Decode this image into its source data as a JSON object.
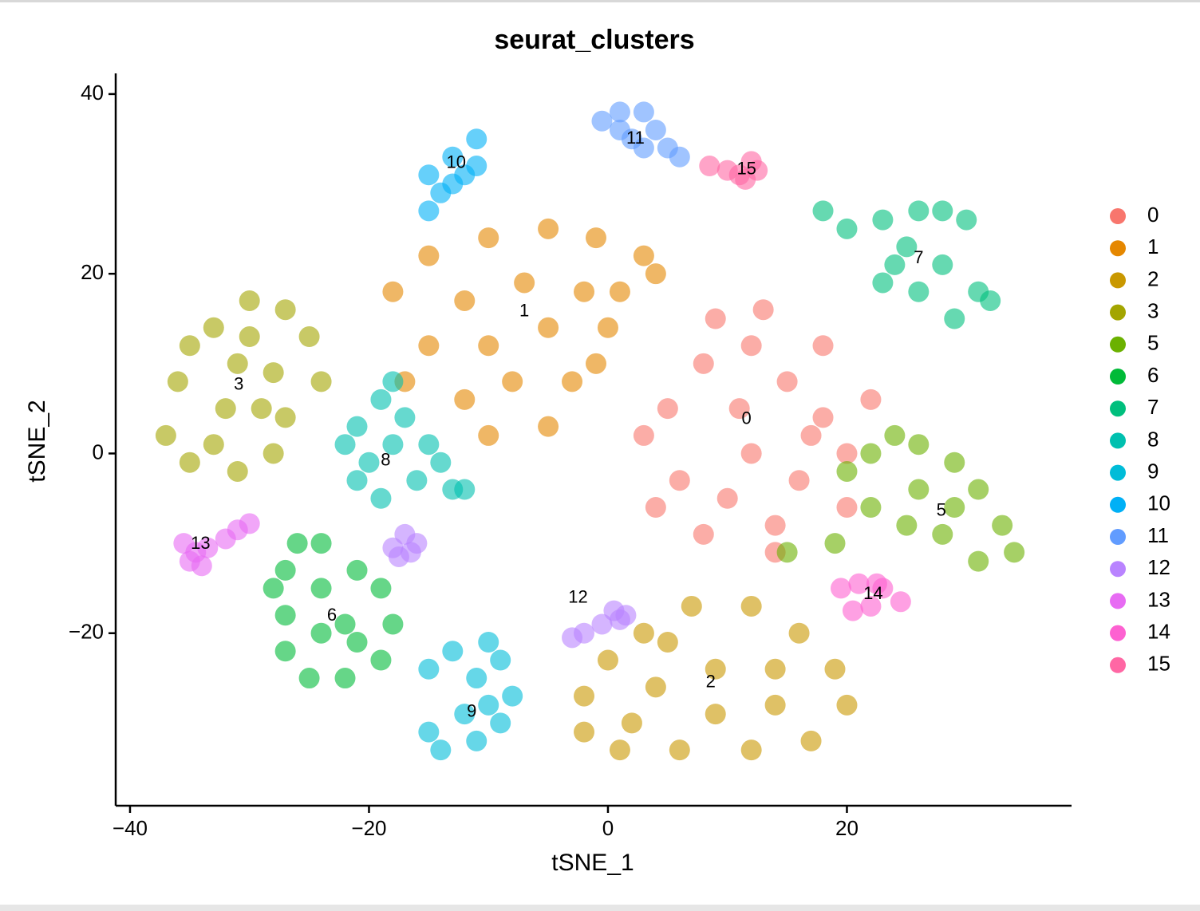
{
  "chart_data": {
    "type": "scatter",
    "title": "seurat_clusters",
    "x_label": "tSNE_1",
    "y_label": "tSNE_2",
    "xlim": [
      -41.2,
      38.8
    ],
    "ylim": [
      -39.2,
      42.3
    ],
    "xticks": [
      {
        "value": -40,
        "label": "−40"
      },
      {
        "value": -20,
        "label": "−20"
      },
      0,
      20
    ],
    "yticks": [
      {
        "value": -20,
        "label": "−20"
      },
      0,
      20,
      40
    ],
    "grid": false,
    "legend": "right",
    "series": [
      {
        "name": "0",
        "color": "#F8766D",
        "label_x": 11.6,
        "label_y": 3.8,
        "x": [
          5,
          8,
          12,
          15,
          18,
          20,
          10,
          14,
          6,
          3,
          12,
          16,
          22,
          9,
          13,
          18,
          8,
          14,
          20,
          4,
          11,
          17
        ],
        "y": [
          5,
          10,
          12,
          8,
          4,
          0,
          -5,
          -8,
          -3,
          2,
          0,
          -3,
          6,
          15,
          16,
          12,
          -9,
          -11,
          -6,
          -6,
          5,
          2
        ]
      },
      {
        "name": "1",
        "color": "#E58700",
        "label_x": -7,
        "label_y": 15.8,
        "x": [
          -18,
          -15,
          -10,
          -5,
          -1,
          3,
          -12,
          -7,
          -2,
          -15,
          -10,
          -5,
          0,
          -17,
          -12,
          -8,
          -3,
          -10,
          -5,
          1,
          4,
          -1
        ],
        "y": [
          18,
          22,
          24,
          25,
          24,
          22,
          17,
          19,
          18,
          12,
          12,
          14,
          14,
          8,
          6,
          8,
          8,
          2,
          3,
          18,
          20,
          10
        ]
      },
      {
        "name": "2",
        "color": "#C99800",
        "label_x": 8.6,
        "label_y": -25.5,
        "x": [
          -2,
          0,
          3,
          7,
          12,
          16,
          19,
          20,
          17,
          12,
          6,
          1,
          -2,
          4,
          9,
          14,
          9,
          14,
          5,
          2
        ],
        "y": [
          -27,
          -23,
          -20,
          -17,
          -17,
          -20,
          -24,
          -28,
          -32,
          -33,
          -33,
          -33,
          -31,
          -26,
          -24,
          -24,
          -29,
          -28,
          -21,
          -30
        ]
      },
      {
        "name": "3",
        "color": "#A3A500",
        "label_x": -30.9,
        "label_y": 7.6,
        "x": [
          -36,
          -37,
          -35,
          -31,
          -28,
          -27,
          -28,
          -25,
          -27,
          -30,
          -33,
          -35,
          -31,
          -32,
          -29,
          -33,
          -24,
          -30
        ],
        "y": [
          8,
          2,
          -1,
          -2,
          0,
          4,
          9,
          13,
          16,
          17,
          14,
          12,
          10,
          5,
          5,
          1,
          8,
          13
        ]
      },
      {
        "name": "5",
        "color": "#6BB100",
        "label_x": 27.9,
        "label_y": -6.4,
        "x": [
          20,
          22,
          26,
          29,
          31,
          33,
          34,
          31,
          28,
          25,
          22,
          26,
          29,
          24,
          15,
          19
        ],
        "y": [
          -2,
          0,
          1,
          -1,
          -4,
          -8,
          -11,
          -12,
          -9,
          -8,
          -6,
          -4,
          -6,
          2,
          -11,
          -10
        ]
      },
      {
        "name": "6",
        "color": "#00BA38",
        "label_x": -23.1,
        "label_y": -18.1,
        "x": [
          -26,
          -24,
          -21,
          -19,
          -18,
          -19,
          -22,
          -25,
          -27,
          -27,
          -27,
          -24,
          -22,
          -24,
          -21,
          -28
        ],
        "y": [
          -10,
          -10,
          -13,
          -15,
          -19,
          -23,
          -25,
          -25,
          -22,
          -18,
          -13,
          -15,
          -19,
          -20,
          -21,
          -15
        ]
      },
      {
        "name": "7",
        "color": "#00BF7D",
        "label_x": 26,
        "label_y": 21.7,
        "x": [
          18,
          20,
          23,
          26,
          28,
          30,
          25,
          28,
          31,
          32,
          29,
          26,
          23,
          24
        ],
        "y": [
          27,
          25,
          26,
          27,
          27,
          26,
          23,
          21,
          18,
          17,
          15,
          18,
          19,
          21
        ]
      },
      {
        "name": "8",
        "color": "#00C0AF",
        "label_x": -18.6,
        "label_y": -0.8,
        "x": [
          -22,
          -21,
          -19,
          -18,
          -17,
          -15,
          -14,
          -16,
          -19,
          -21,
          -20,
          -18,
          -13,
          -12
        ],
        "y": [
          1,
          3,
          6,
          8,
          4,
          1,
          -1,
          -3,
          -5,
          -3,
          -1,
          1,
          -4,
          -4
        ]
      },
      {
        "name": "9",
        "color": "#00BCD8",
        "label_x": -11.4,
        "label_y": -28.8,
        "x": [
          -15,
          -13,
          -10,
          -9,
          -11,
          -8,
          -9,
          -11,
          -14,
          -15,
          -12,
          -10
        ],
        "y": [
          -24,
          -22,
          -21,
          -23,
          -25,
          -27,
          -30,
          -32,
          -33,
          -31,
          -29,
          -28
        ]
      },
      {
        "name": "10",
        "color": "#00B0F6",
        "label_x": -12.7,
        "label_y": 32.3,
        "x": [
          -15,
          -14,
          -15,
          -13,
          -11,
          -12,
          -13,
          -11
        ],
        "y": [
          27,
          29,
          31,
          33,
          35,
          31,
          30,
          32
        ]
      },
      {
        "name": "11",
        "color": "#619CFF",
        "label_x": 2.3,
        "label_y": 35,
        "x": [
          -0.5,
          1,
          3,
          4,
          5,
          6,
          2,
          1,
          3
        ],
        "y": [
          37,
          38,
          38,
          36,
          34,
          33,
          35,
          36,
          34
        ]
      },
      {
        "name": "12",
        "color": "#B983FF",
        "label_x": -2.5,
        "label_y": -16.1,
        "x": [
          -18,
          -17,
          -16.5,
          -17.5,
          -16,
          0.5,
          1,
          -0.5,
          -2,
          -3,
          1.5
        ],
        "y": [
          -10.5,
          -9,
          -11,
          -11.5,
          -10,
          -17.5,
          -18.5,
          -19,
          -20,
          -20.5,
          -18
        ]
      },
      {
        "name": "13",
        "color": "#E76BF3",
        "label_x": -34.1,
        "label_y": -10.1,
        "x": [
          -35.5,
          -34.5,
          -35,
          -33.5,
          -32,
          -31,
          -30,
          -34
        ],
        "y": [
          -10,
          -11,
          -12,
          -10.5,
          -9.5,
          -8.5,
          -7.8,
          -12.5
        ]
      },
      {
        "name": "14",
        "color": "#FD61D1",
        "label_x": 22.2,
        "label_y": -15.7,
        "x": [
          19.5,
          21,
          23,
          24.5,
          22,
          20.5,
          22.5
        ],
        "y": [
          -15,
          -14.5,
          -15,
          -16.5,
          -17,
          -17.5,
          -14.5
        ]
      },
      {
        "name": "15",
        "color": "#FF67A4",
        "label_x": 11.6,
        "label_y": 31.6,
        "x": [
          8.5,
          10,
          11,
          12,
          12.5,
          11.5
        ],
        "y": [
          32,
          31.5,
          31,
          32.5,
          31.5,
          30.5
        ]
      }
    ]
  }
}
